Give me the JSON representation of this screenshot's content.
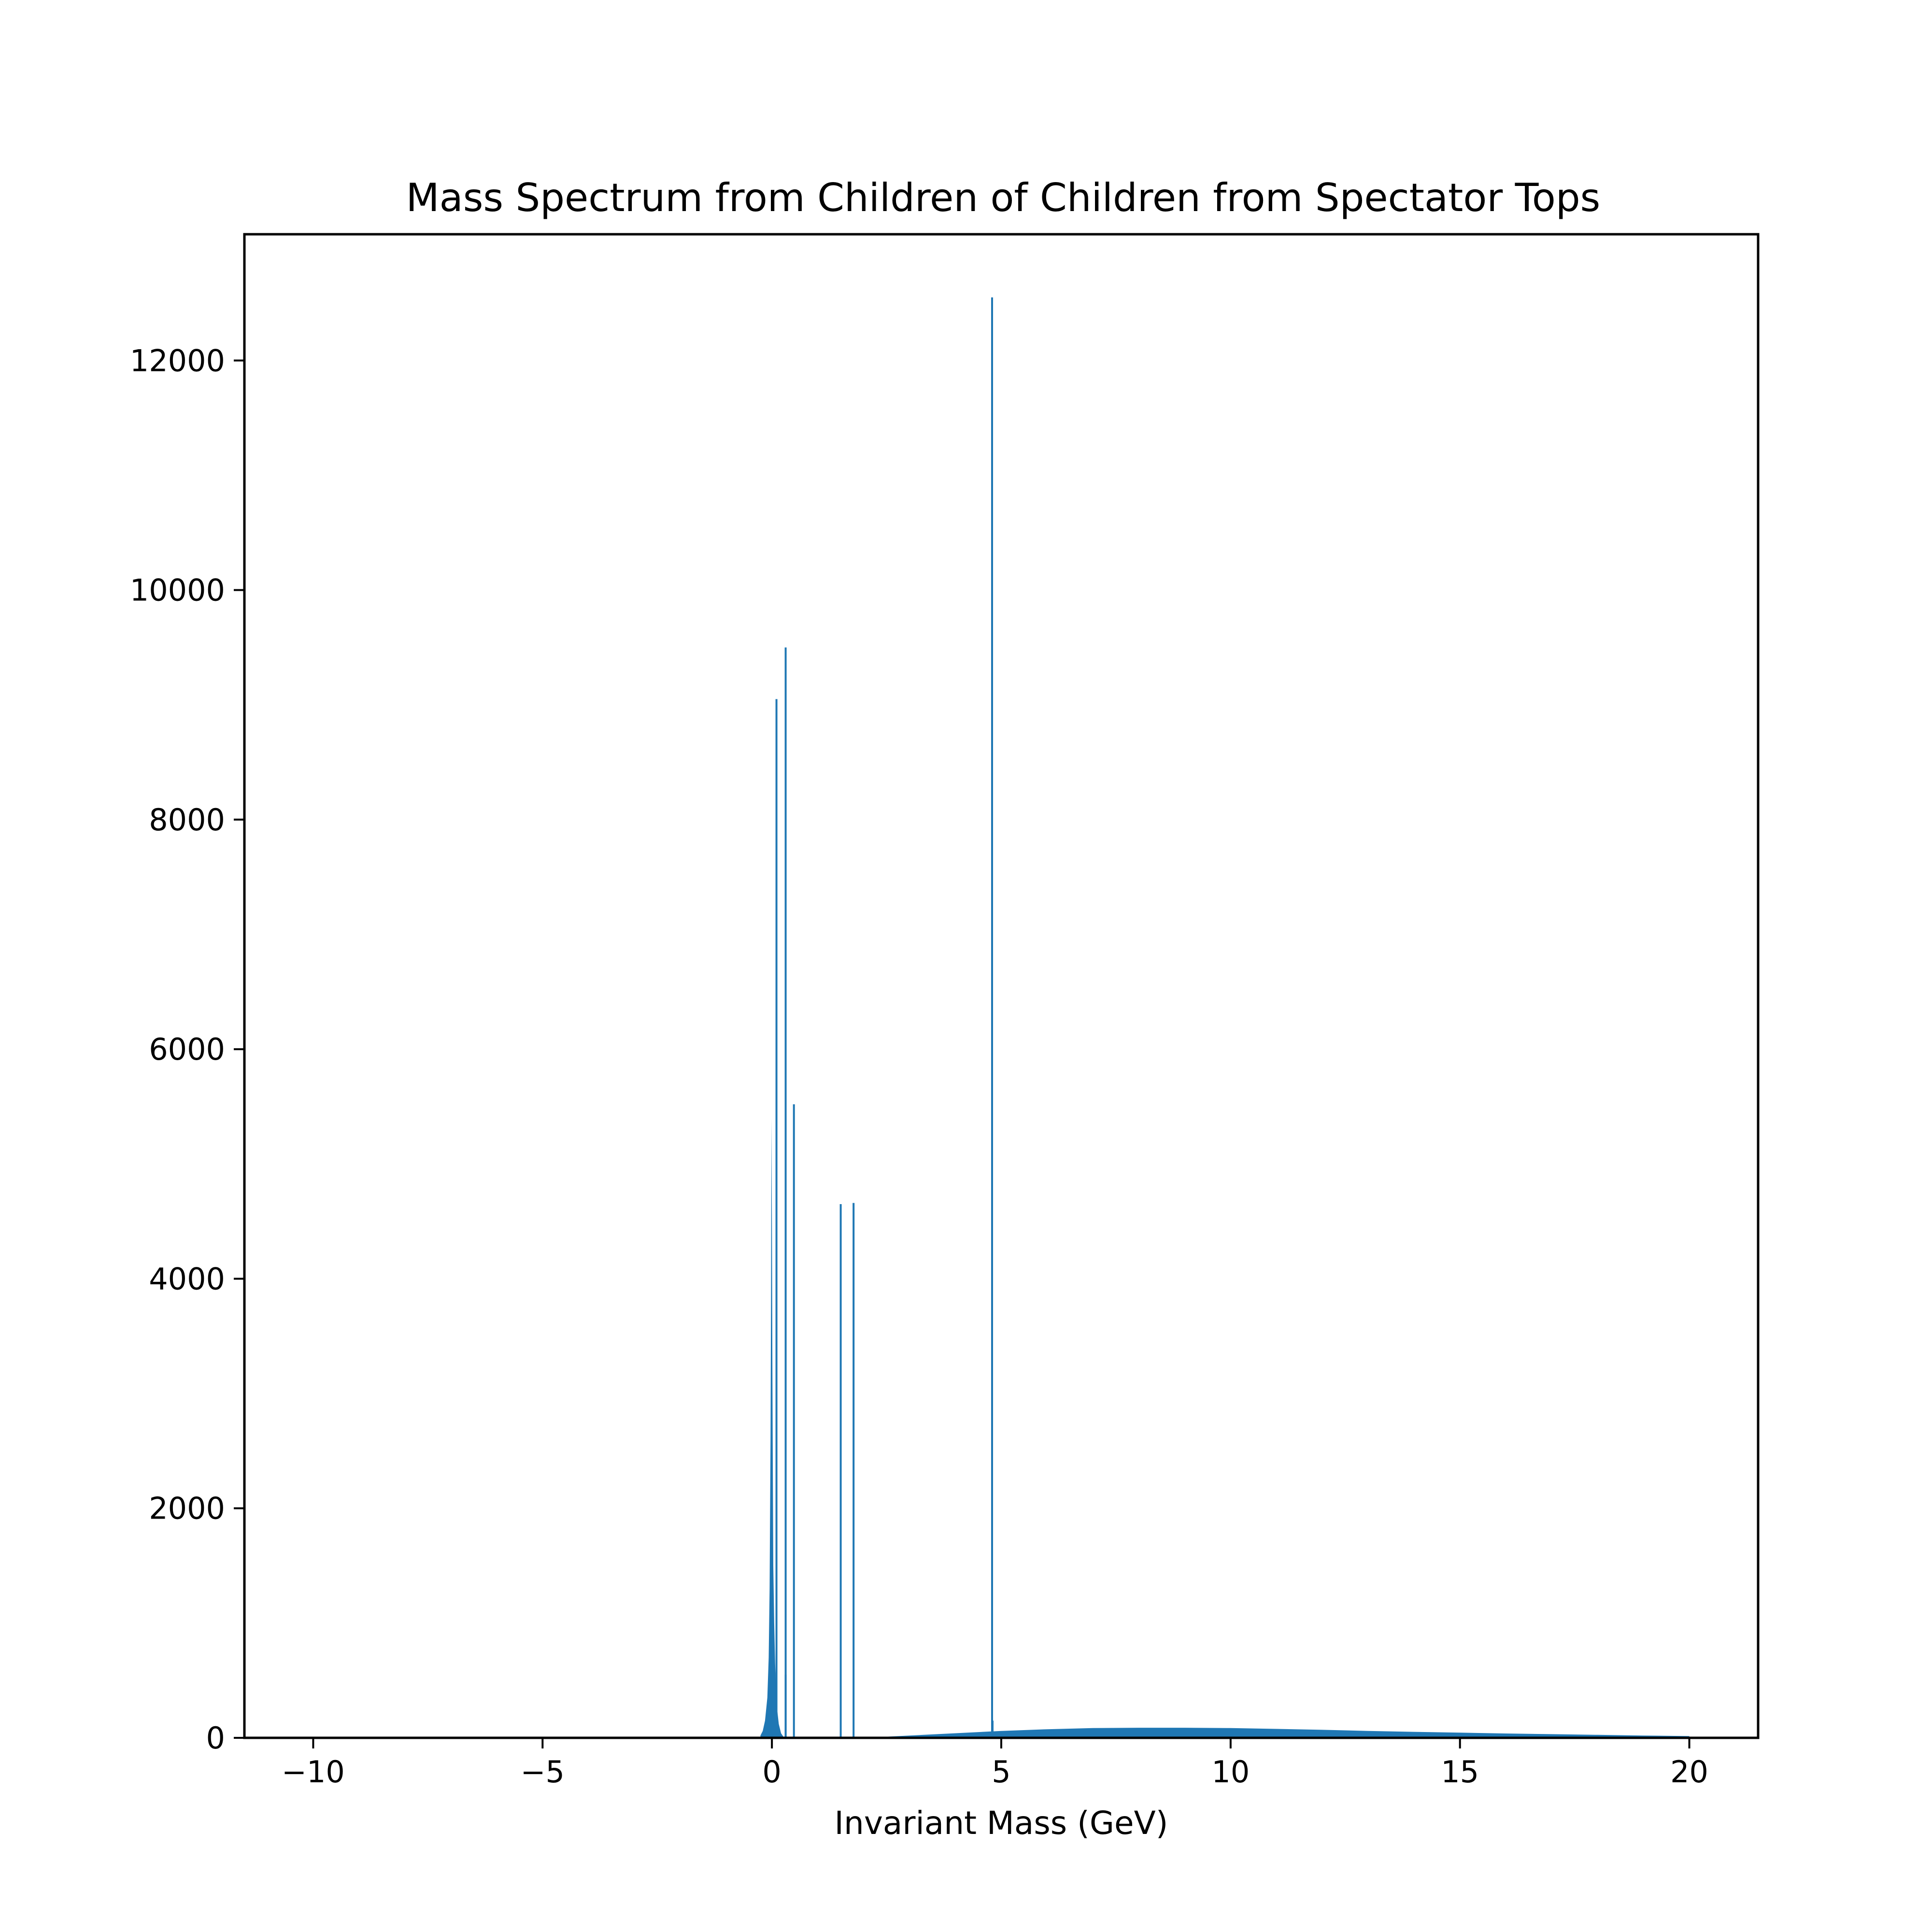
{
  "chart_data": {
    "type": "bar",
    "title": "Mass Spectrum from Children of Children from Spectator Tops",
    "xlabel": "Invariant Mass (GeV)",
    "ylabel": "",
    "xlim": [
      -11.5,
      21.5
    ],
    "ylim": [
      0,
      13100
    ],
    "grid": false,
    "legend": "none",
    "color": "#1f77b4",
    "x_ticks": [
      {
        "value": -10,
        "label": "−10"
      },
      {
        "value": -5,
        "label": "−5"
      },
      {
        "value": 0,
        "label": "0"
      },
      {
        "value": 5,
        "label": "5"
      },
      {
        "value": 10,
        "label": "10"
      },
      {
        "value": 15,
        "label": "15"
      },
      {
        "value": 20,
        "label": "20"
      }
    ],
    "y_ticks": [
      {
        "value": 0,
        "label": "0"
      },
      {
        "value": 2000,
        "label": "2000"
      },
      {
        "value": 4000,
        "label": "4000"
      },
      {
        "value": 6000,
        "label": "6000"
      },
      {
        "value": 8000,
        "label": "8000"
      },
      {
        "value": 10000,
        "label": "10000"
      },
      {
        "value": 12000,
        "label": "12000"
      }
    ],
    "core_peak": {
      "x": [
        -0.25,
        -0.2,
        -0.15,
        -0.1,
        -0.07,
        -0.05,
        -0.03,
        -0.02,
        -0.01,
        0.0,
        0.01,
        0.02,
        0.03,
        0.05,
        0.07,
        0.1,
        0.15,
        0.2,
        0.25
      ],
      "y": [
        20,
        60,
        150,
        350,
        700,
        1300,
        2600,
        3800,
        5400,
        4500,
        3300,
        2300,
        1500,
        1000,
        650,
        300,
        120,
        40,
        10
      ]
    },
    "spikes": [
      {
        "x": 0.1,
        "y": 9050
      },
      {
        "x": 0.3,
        "y": 9500
      },
      {
        "x": 0.3,
        "y": 550
      },
      {
        "x": 0.48,
        "y": 5520
      },
      {
        "x": 1.5,
        "y": 4650
      },
      {
        "x": 1.78,
        "y": 4660
      },
      {
        "x": 4.8,
        "y": 12550
      },
      {
        "x": 4.81,
        "y": 150
      }
    ],
    "continuum": {
      "x": [
        1.8,
        2.5,
        3.0,
        4.0,
        5.0,
        6.0,
        7.0,
        8.0,
        9.0,
        10.0,
        11.0,
        12.0,
        13.0,
        14.0,
        15.0,
        16.0,
        17.0,
        18.0,
        19.0,
        20.0
      ],
      "y": [
        0,
        10,
        20,
        40,
        60,
        75,
        85,
        88,
        88,
        85,
        78,
        70,
        60,
        52,
        45,
        38,
        32,
        26,
        20,
        15
      ]
    }
  }
}
